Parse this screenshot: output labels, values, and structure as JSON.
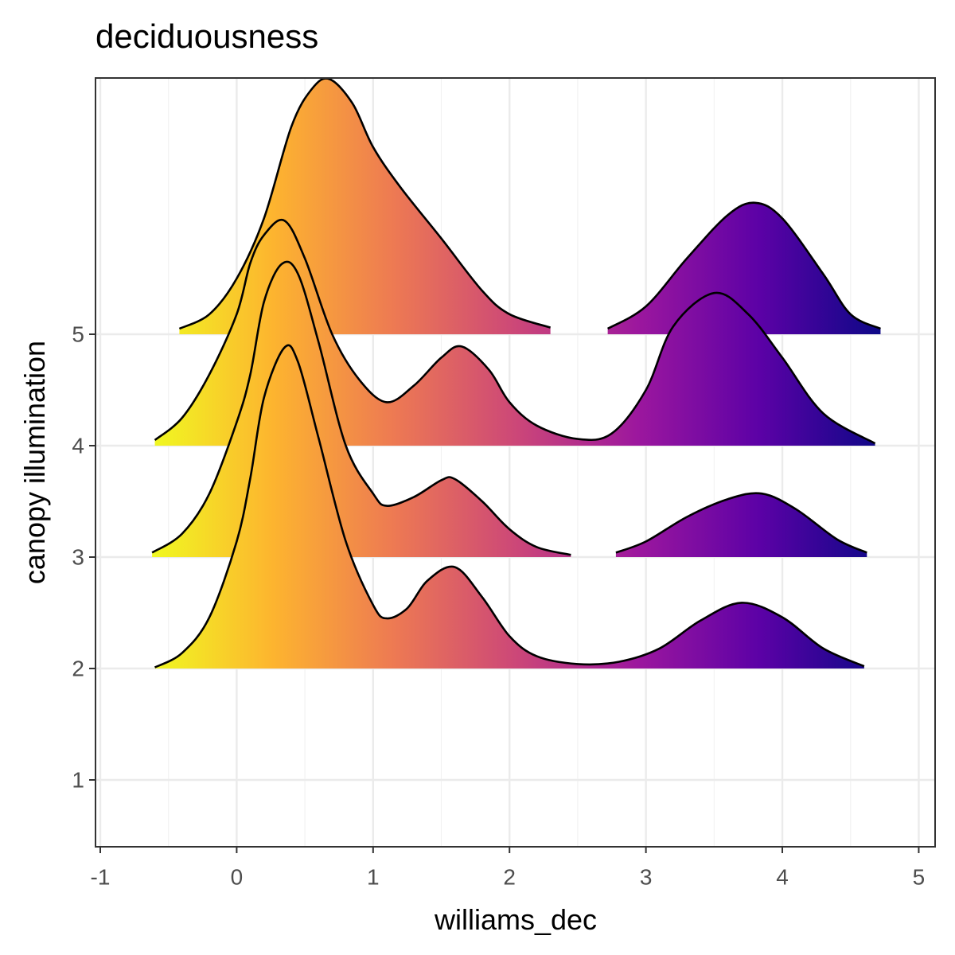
{
  "chart_data": {
    "type": "ridgeline",
    "title": "deciduousness",
    "xlabel": "williams_dec",
    "ylabel": "canopy illumination",
    "xlim": [
      -1.035,
      5.12
    ],
    "xticks": [
      -1,
      0,
      1,
      2,
      3,
      4,
      5
    ],
    "x_minor_ticks": [
      -0.5,
      0.5,
      1.5,
      2.5,
      3.5,
      4.5
    ],
    "ylim": [
      0.4,
      7.3
    ],
    "yticks": [
      1,
      2,
      3,
      4,
      5
    ],
    "grid": true,
    "fill_colormap": [
      "#f0f921",
      "#fdb42f",
      "#ed7953",
      "#cc4778",
      "#9c179e",
      "#5c01a6",
      "#0d0887"
    ],
    "outline_color": "#000000",
    "series": [
      {
        "baseline": 5,
        "x": [
          -0.42,
          -0.2,
          0,
          0.2,
          0.4,
          0.55,
          0.68,
          0.85,
          1.0,
          1.2,
          1.5,
          1.8,
          2.0,
          2.3,
          null,
          2.72,
          3.0,
          3.3,
          3.6,
          3.8,
          4.0,
          4.3,
          4.5,
          4.72
        ],
        "values": [
          0.05,
          0.18,
          0.5,
          1.04,
          1.86,
          2.2,
          2.29,
          2.07,
          1.68,
          1.32,
          0.86,
          0.39,
          0.18,
          0.06,
          null,
          0.05,
          0.25,
          0.68,
          1.07,
          1.18,
          1.04,
          0.54,
          0.18,
          0.05
        ]
      },
      {
        "baseline": 4,
        "x": [
          -0.6,
          -0.4,
          -0.2,
          0,
          0.1,
          0.2,
          0.35,
          0.5,
          0.7,
          0.9,
          1.1,
          1.3,
          1.5,
          1.65,
          1.85,
          2.0,
          2.2,
          2.5,
          2.75,
          3.0,
          3.2,
          3.5,
          3.75,
          4.0,
          4.3,
          4.68
        ],
        "values": [
          0.05,
          0.25,
          0.64,
          1.18,
          1.64,
          1.89,
          2.02,
          1.68,
          1.0,
          0.59,
          0.39,
          0.54,
          0.79,
          0.89,
          0.68,
          0.39,
          0.18,
          0.06,
          0.11,
          0.5,
          1.07,
          1.37,
          1.18,
          0.79,
          0.29,
          0.02
        ]
      },
      {
        "baseline": 3,
        "x": [
          -0.62,
          -0.4,
          -0.2,
          0,
          0.1,
          0.2,
          0.33,
          0.45,
          0.6,
          0.8,
          1.0,
          1.1,
          1.3,
          1.5,
          1.6,
          1.8,
          2.0,
          2.2,
          2.45,
          null,
          2.78,
          3.0,
          3.3,
          3.6,
          3.85,
          4.1,
          4.4,
          4.62
        ],
        "values": [
          0.04,
          0.21,
          0.57,
          1.21,
          1.64,
          2.29,
          2.63,
          2.54,
          1.93,
          1.0,
          0.57,
          0.46,
          0.54,
          0.69,
          0.7,
          0.5,
          0.25,
          0.09,
          0.02,
          null,
          0.04,
          0.14,
          0.36,
          0.52,
          0.57,
          0.43,
          0.16,
          0.04
        ]
      },
      {
        "baseline": 2,
        "x": [
          -0.6,
          -0.4,
          -0.2,
          0,
          0.1,
          0.2,
          0.35,
          0.45,
          0.6,
          0.8,
          1.0,
          1.1,
          1.25,
          1.4,
          1.6,
          1.8,
          2.0,
          2.2,
          2.5,
          2.8,
          3.1,
          3.4,
          3.7,
          4.0,
          4.3,
          4.6
        ],
        "values": [
          0.01,
          0.14,
          0.46,
          1.14,
          1.71,
          2.43,
          2.88,
          2.75,
          2.07,
          1.14,
          0.57,
          0.45,
          0.54,
          0.79,
          0.91,
          0.64,
          0.29,
          0.11,
          0.04,
          0.06,
          0.18,
          0.43,
          0.59,
          0.46,
          0.18,
          0.02
        ]
      }
    ]
  }
}
